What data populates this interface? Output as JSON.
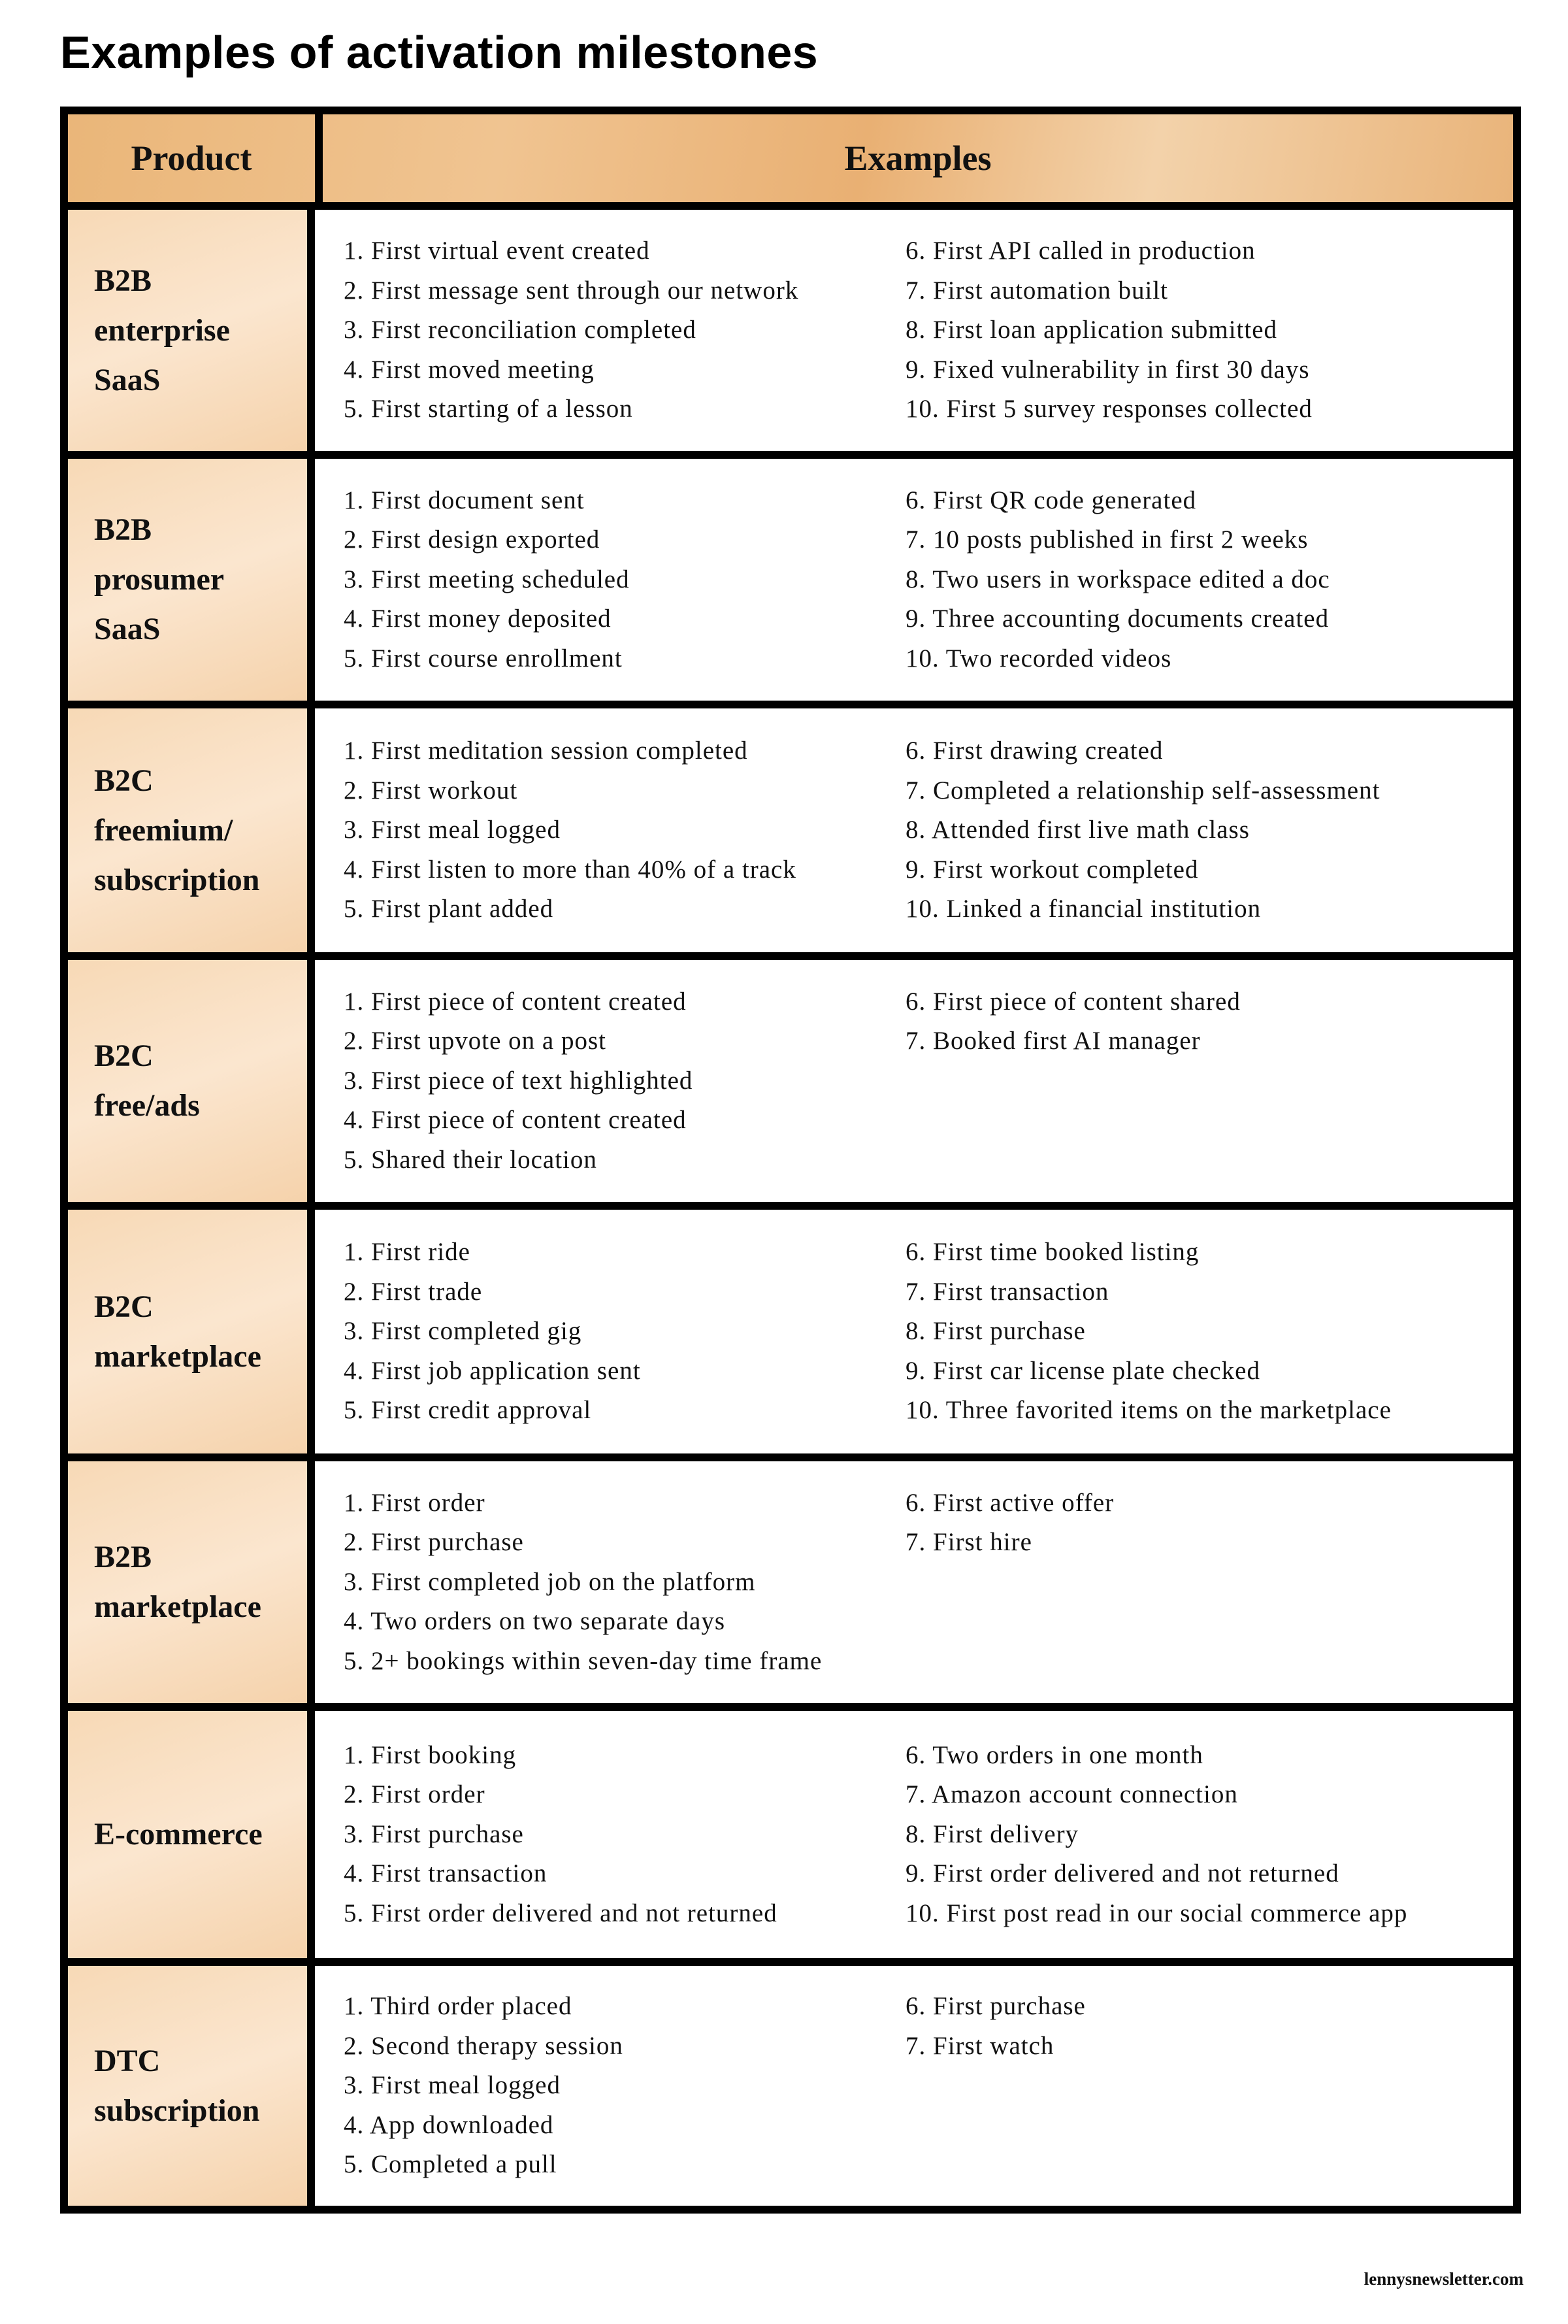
{
  "title": "Examples of activation milestones",
  "header": {
    "product": "Product",
    "examples": "Examples"
  },
  "colors": {
    "header_bg": "#eab679",
    "product_bg": "#f9dfc2",
    "border": "#000000"
  },
  "rows": [
    {
      "product": [
        "B2B",
        "enterprise",
        "SaaS"
      ],
      "left": [
        "1. First virtual event created",
        "2. First message sent through our network",
        "3. First reconciliation completed",
        "4. First moved meeting",
        "5. First starting of a lesson"
      ],
      "right": [
        "6. First API called in production",
        "7. First automation built",
        "8. First loan application submitted",
        "9. Fixed vulnerability in first 30 days",
        "10. First 5 survey responses collected"
      ]
    },
    {
      "product": [
        "B2B",
        "prosumer",
        "SaaS"
      ],
      "left": [
        "1. First document sent",
        "2. First design exported",
        "3. First meeting scheduled",
        "4. First money deposited",
        "5. First course enrollment"
      ],
      "right": [
        "6. First QR code generated",
        "7. 10 posts published in first 2 weeks",
        "8. Two users in workspace edited a doc",
        "9. Three accounting documents created",
        "10. Two recorded videos"
      ]
    },
    {
      "product": [
        "B2C",
        "freemium/",
        "subscription"
      ],
      "left": [
        "1. First meditation session completed",
        "2. First workout",
        "3. First meal logged",
        "4. First listen to more than 40% of a track",
        "5. First plant added"
      ],
      "right": [
        "6. First drawing created",
        "7. Completed a relationship self-assessment",
        "8. Attended first live math class",
        "9. First workout completed",
        "10. Linked a financial institution"
      ]
    },
    {
      "product": [
        "B2C",
        "free/ads"
      ],
      "left": [
        "1. First piece of content created",
        "2. First upvote on a post",
        "3. First piece of text highlighted",
        "4. First piece of content created",
        "5. Shared their location"
      ],
      "right": [
        "6. First piece of content shared",
        "7. Booked first AI manager"
      ]
    },
    {
      "product": [
        "B2C",
        "marketplace"
      ],
      "left": [
        "1. First ride",
        "2. First trade",
        "3. First completed gig",
        "4. First job application sent",
        "5. First credit approval"
      ],
      "right": [
        "6. First time booked listing",
        "7. First transaction",
        "8. First purchase",
        "9. First car license plate checked",
        "10. Three favorited items on the marketplace"
      ]
    },
    {
      "product": [
        "B2B",
        "marketplace"
      ],
      "left": [
        "1. First order",
        "2. First purchase",
        "3. First completed job on the platform",
        "4. Two orders on two separate days",
        "5. 2+ bookings within seven-day time frame"
      ],
      "right": [
        "6. First active offer",
        "7. First hire"
      ]
    },
    {
      "product": [
        "E-commerce"
      ],
      "left": [
        "1. First booking",
        "2. First order",
        "3. First purchase",
        "4. First transaction",
        "5. First order delivered and not returned"
      ],
      "right": [
        "6. Two orders in one month",
        "7. Amazon account connection",
        "8. First delivery",
        "9. First order delivered and not returned",
        "10. First post read in our social commerce app"
      ]
    },
    {
      "product": [
        "DTC",
        "subscription"
      ],
      "left": [
        "1. Third order placed",
        "2. Second therapy session",
        "3. First meal logged",
        "4. App downloaded",
        "5. Completed a pull"
      ],
      "right": [
        "6. First purchase",
        "7. First watch"
      ]
    }
  ],
  "footer": "lennysnewsletter.com"
}
